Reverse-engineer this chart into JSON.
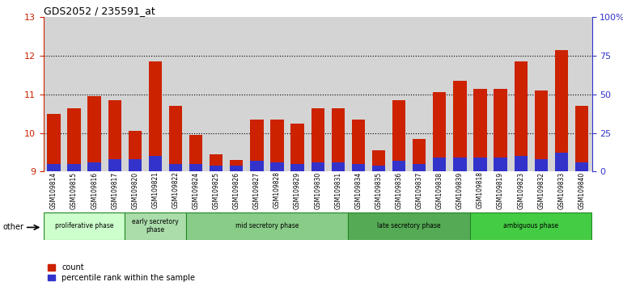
{
  "title": "GDS2052 / 235591_at",
  "samples": [
    "GSM109814",
    "GSM109815",
    "GSM109816",
    "GSM109817",
    "GSM109820",
    "GSM109821",
    "GSM109822",
    "GSM109824",
    "GSM109825",
    "GSM109826",
    "GSM109827",
    "GSM109828",
    "GSM109829",
    "GSM109830",
    "GSM109831",
    "GSM109834",
    "GSM109835",
    "GSM109836",
    "GSM109837",
    "GSM109838",
    "GSM109839",
    "GSM109818",
    "GSM109819",
    "GSM109823",
    "GSM109832",
    "GSM109833",
    "GSM109840"
  ],
  "count_values": [
    10.5,
    10.65,
    10.95,
    10.85,
    10.05,
    11.85,
    10.7,
    9.95,
    9.45,
    9.3,
    10.35,
    10.35,
    10.25,
    10.65,
    10.65,
    10.35,
    9.55,
    10.85,
    9.85,
    11.05,
    11.35,
    11.15,
    11.15,
    11.85,
    11.1,
    12.15,
    10.7
  ],
  "percentile_values": [
    5,
    5,
    6,
    8,
    8,
    10,
    5,
    5,
    4,
    4,
    7,
    6,
    5,
    6,
    6,
    5,
    4,
    7,
    5,
    9,
    9,
    9,
    9,
    10,
    8,
    12,
    6
  ],
  "ylim_left": [
    9,
    13
  ],
  "ylim_right": [
    0,
    100
  ],
  "yticks_left": [
    9,
    10,
    11,
    12,
    13
  ],
  "ytick_labels_right": [
    "0",
    "25",
    "50",
    "75",
    "100%"
  ],
  "yticks_right_positions": [
    0,
    25,
    50,
    75,
    100
  ],
  "phases": [
    {
      "label": "proliferative phase",
      "start": 0,
      "end": 4
    },
    {
      "label": "early secretory\nphase",
      "start": 4,
      "end": 7
    },
    {
      "label": "mid secretory phase",
      "start": 7,
      "end": 15
    },
    {
      "label": "late secretory phase",
      "start": 15,
      "end": 21
    },
    {
      "label": "ambiguous phase",
      "start": 21,
      "end": 27
    }
  ],
  "phase_colors": [
    "#ccffcc",
    "#aaddaa",
    "#88cc88",
    "#55aa55",
    "#44cc44"
  ],
  "bar_color_count": "#cc2200",
  "bar_color_pct": "#3333cc",
  "background_color": "#d4d4d4",
  "ylabel_left_color": "#cc2200",
  "ylabel_right_color": "#3333cc",
  "other_label": "other"
}
